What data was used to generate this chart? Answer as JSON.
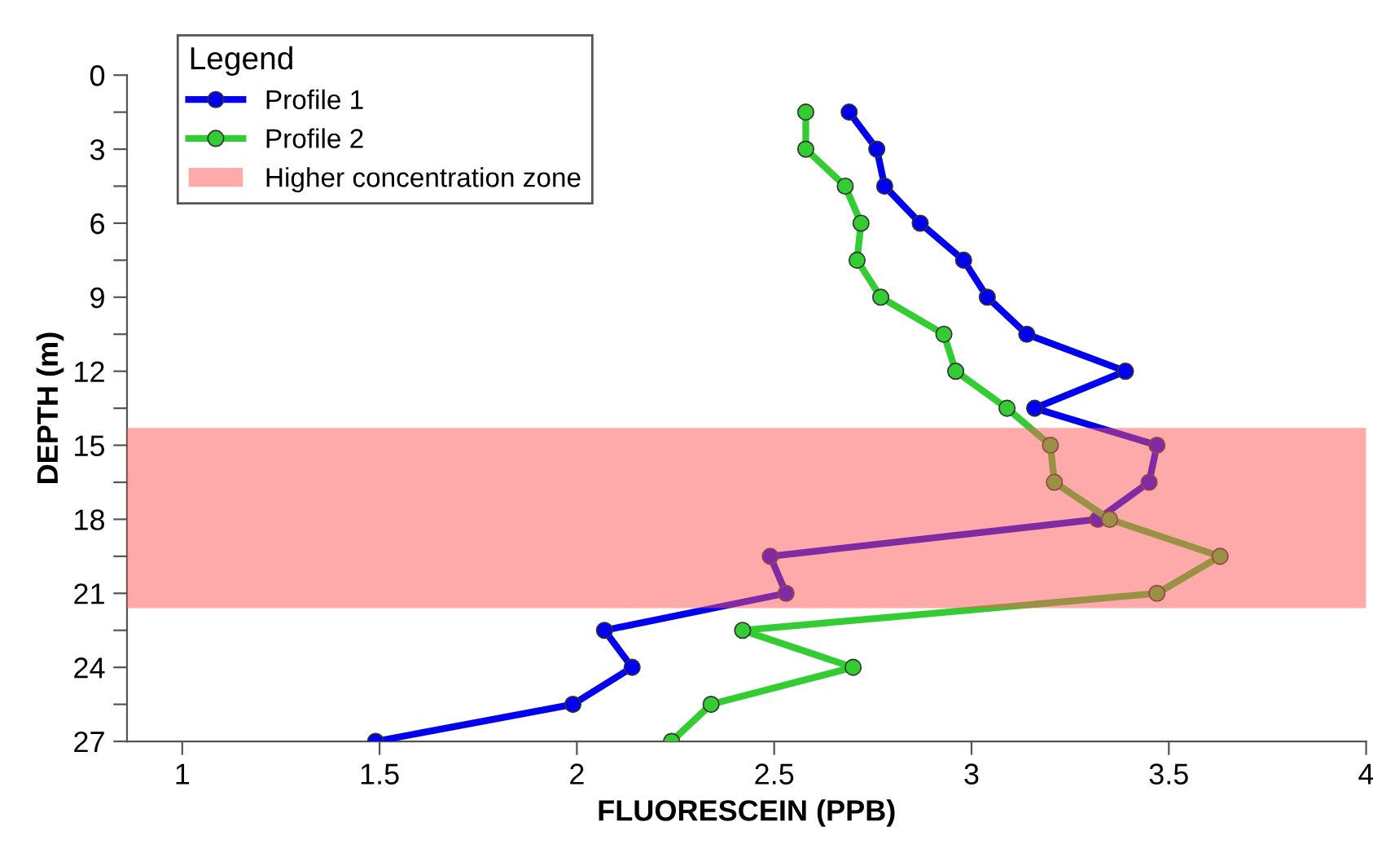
{
  "chart_data": {
    "type": "line",
    "xlabel": "FLUORESCEIN (PPB)",
    "ylabel": "DEPTH (m)",
    "legend_title": "Legend",
    "legend": "top left",
    "marker": "circle",
    "line_style": "solid",
    "grid": false,
    "xlim": [
      0.86,
      4
    ],
    "xticks": [
      1,
      1.5,
      2,
      2.5,
      3,
      3.5,
      4
    ],
    "ylim": [
      27,
      0
    ],
    "yticks": [
      0,
      {
        "value": 1.5,
        "label": null
      },
      3,
      {
        "value": 4.5,
        "label": null
      },
      6,
      {
        "value": 7.5,
        "label": null
      },
      9,
      {
        "value": 10.5,
        "label": null
      },
      12,
      {
        "value": 13.5,
        "label": null
      },
      15,
      {
        "value": 16.5,
        "label": null
      },
      18,
      {
        "value": 19.5,
        "label": null
      },
      21,
      {
        "value": 22.5,
        "label": null
      },
      24,
      {
        "value": 25.5,
        "label": null
      },
      27
    ],
    "series": [
      {
        "name": "Profile 1",
        "color": "#0000ee",
        "x": [
          2.69,
          2.76,
          2.78,
          2.87,
          2.98,
          3.04,
          3.14,
          3.39,
          3.16,
          3.47,
          3.45,
          3.32,
          2.49,
          2.53,
          2.07,
          2.14,
          1.99,
          1.49
        ],
        "values": [
          1.5,
          3,
          4.5,
          6,
          7.5,
          9,
          10.5,
          12,
          13.5,
          15,
          16.5,
          18,
          19.5,
          21,
          22.5,
          24,
          25.5,
          27
        ]
      },
      {
        "name": "Profile 2",
        "color": "#33cc33",
        "x": [
          2.58,
          2.58,
          2.68,
          2.72,
          2.71,
          2.77,
          2.93,
          2.96,
          3.09,
          3.2,
          3.21,
          3.35,
          3.63,
          3.47,
          2.42,
          2.7,
          2.34,
          2.24
        ],
        "values": [
          1.5,
          3,
          4.5,
          6,
          7.5,
          9,
          10.5,
          12,
          13.5,
          15,
          16.5,
          18,
          19.5,
          21,
          22.5,
          24,
          25.5,
          27
        ]
      }
    ],
    "bands": [
      {
        "axis": "y",
        "from": 14.3,
        "to": 21.6,
        "label": "Higher concentration zone",
        "color": "#ff5555"
      }
    ]
  }
}
